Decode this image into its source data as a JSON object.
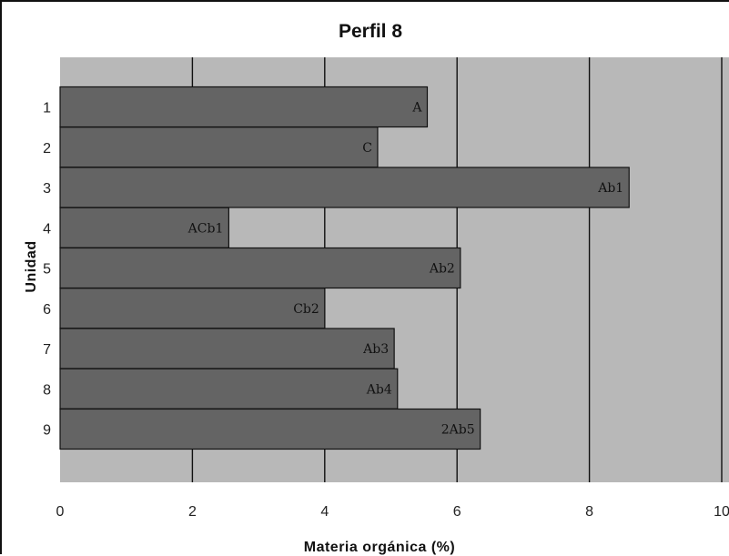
{
  "chart_data": {
    "type": "bar",
    "orientation": "horizontal",
    "title": "Perfil 8",
    "xlabel": "Materia orgánica (%)",
    "ylabel": "Unidad",
    "xlim": [
      0,
      10
    ],
    "x_ticks": [
      "0",
      "2",
      "4",
      "6",
      "8",
      "10"
    ],
    "grid": "vertical",
    "legend": "none",
    "categories": [
      "1",
      "2",
      "3",
      "4",
      "5",
      "6",
      "7",
      "8",
      "9"
    ],
    "values": [
      5.55,
      4.8,
      8.6,
      2.55,
      6.05,
      4.0,
      5.05,
      5.1,
      6.35
    ],
    "bar_labels": [
      "A",
      "C",
      "Ab1",
      "ACb1",
      "Ab2",
      "Cb2",
      "Ab3",
      "Ab4",
      "2Ab5"
    ],
    "colors": {
      "plot_background": "#b8b8b8",
      "bar_fill": "#646464",
      "bar_stroke": "#111111",
      "gridline": "#111111"
    }
  }
}
